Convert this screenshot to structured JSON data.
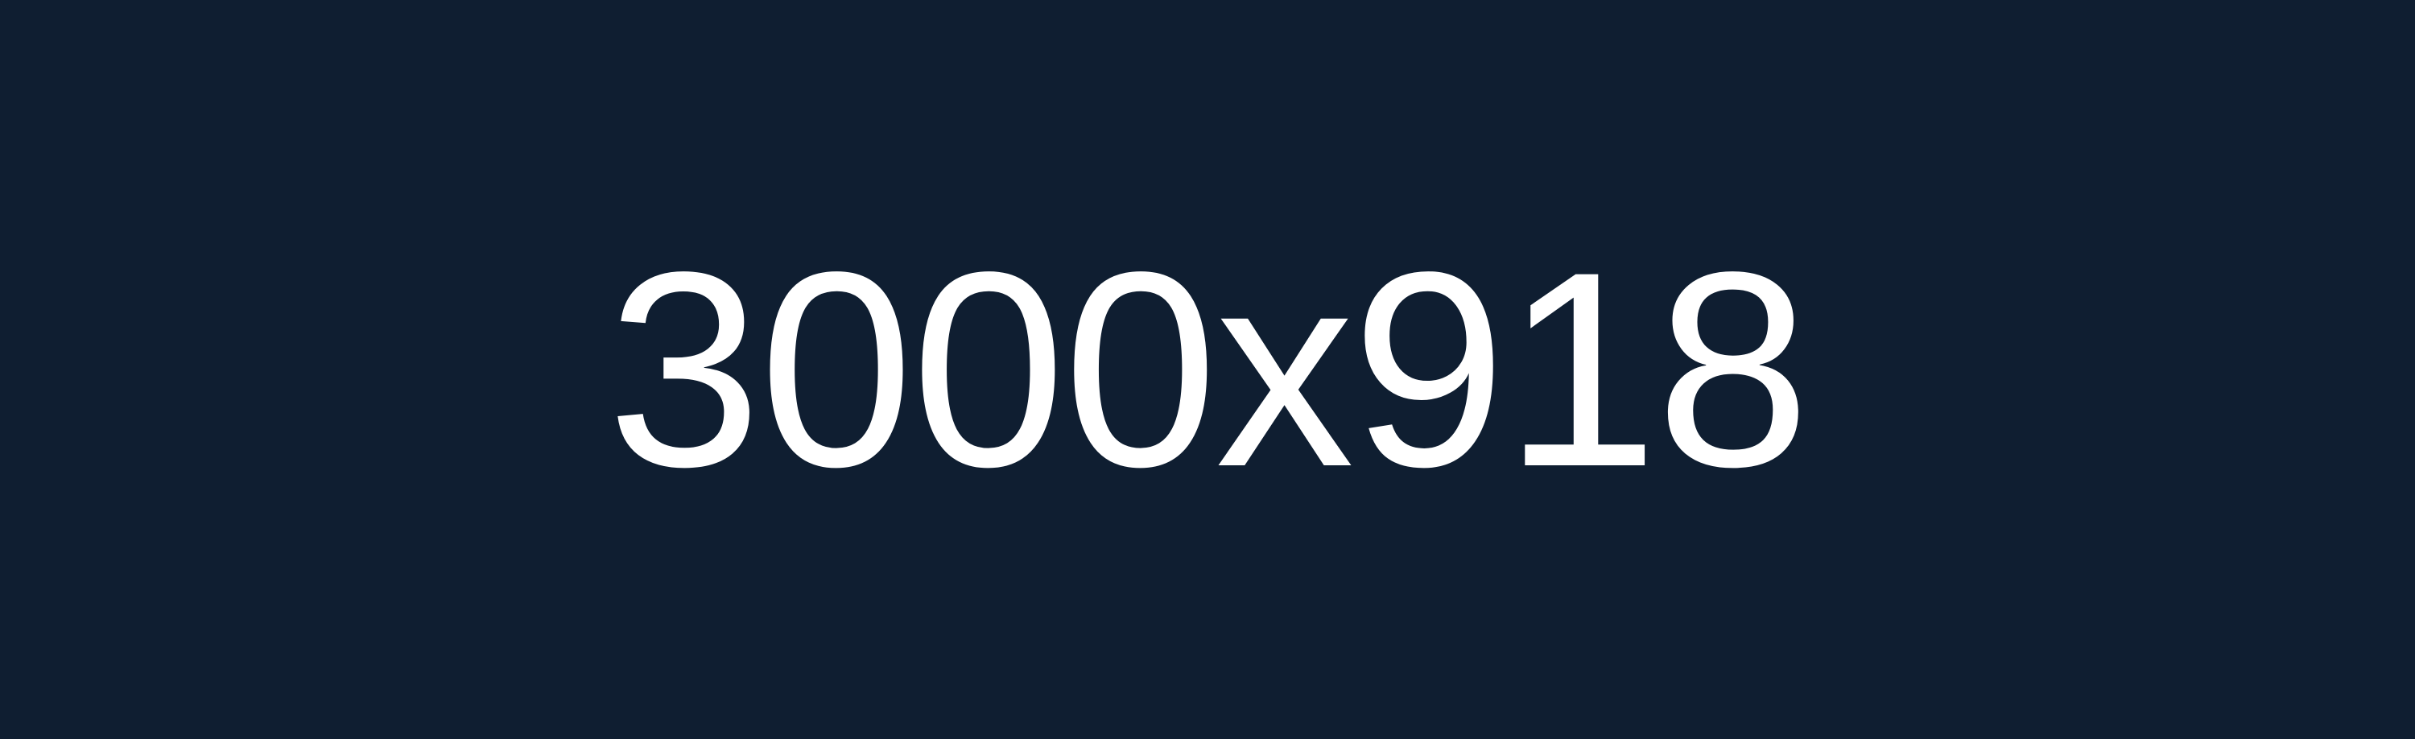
{
  "placeholder": {
    "text": "3000x918",
    "background_color": "#0f1e31",
    "text_color": "#ffffff"
  }
}
